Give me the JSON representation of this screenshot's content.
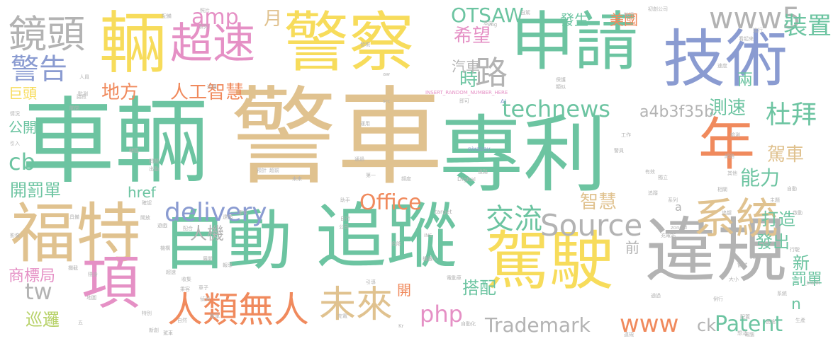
{
  "colors": {
    "green": "#6cc4a1",
    "tan": "#e0c28f",
    "yellow": "#f7dc5b",
    "blue": "#8a9bd1",
    "pink": "#e590c5",
    "orange": "#f08a5d",
    "gray": "#b3b3b3",
    "olive": "#b8d26a"
  },
  "words": [
    {
      "text": "車輛",
      "color": "green"
    },
    {
      "text": "警車",
      "color": "tan"
    },
    {
      "text": "專利",
      "color": "green"
    },
    {
      "text": "警察",
      "color": "yellow"
    },
    {
      "text": "申請",
      "color": "green"
    },
    {
      "text": "技術",
      "color": "blue"
    },
    {
      "text": "輛",
      "color": "yellow"
    },
    {
      "text": "超速",
      "color": "pink"
    },
    {
      "text": "自動",
      "color": "green"
    },
    {
      "text": "追蹤",
      "color": "green"
    },
    {
      "text": "駕駛",
      "color": "yellow"
    },
    {
      "text": "違規",
      "color": "gray"
    },
    {
      "text": "福特",
      "color": "tan"
    },
    {
      "text": "項",
      "color": "pink"
    },
    {
      "text": "年",
      "color": "orange"
    },
    {
      "text": "鏡頭",
      "color": "gray"
    },
    {
      "text": "警告",
      "color": "blue"
    },
    {
      "text": "系統",
      "color": "tan"
    },
    {
      "text": "未來",
      "color": "tan"
    },
    {
      "text": "人類無人",
      "color": "orange"
    },
    {
      "text": "Source",
      "color": "gray"
    },
    {
      "text": "www5",
      "color": "gray"
    },
    {
      "text": "杜拜",
      "color": "green"
    },
    {
      "text": "交流",
      "color": "green"
    },
    {
      "text": "delivery",
      "color": "blue"
    },
    {
      "text": "Office",
      "color": "orange"
    },
    {
      "text": "technews",
      "color": "green"
    },
    {
      "text": "Trademark",
      "color": "gray"
    },
    {
      "text": "Patent",
      "color": "green"
    },
    {
      "text": "www",
      "color": "orange"
    },
    {
      "text": "php",
      "color": "pink"
    },
    {
      "text": "amp",
      "color": "pink"
    },
    {
      "text": "OTSAW",
      "color": "green"
    },
    {
      "text": "希望",
      "color": "pink"
    },
    {
      "text": "路",
      "color": "gray"
    },
    {
      "text": "時",
      "color": "green"
    },
    {
      "text": "裝置",
      "color": "green"
    },
    {
      "text": "人工智慧",
      "color": "orange"
    },
    {
      "text": "地方",
      "color": "orange"
    },
    {
      "text": "月",
      "color": "tan"
    },
    {
      "text": "測速",
      "color": "green"
    },
    {
      "text": "a4b3f35b",
      "color": "gray"
    },
    {
      "text": "駕車",
      "color": "tan"
    },
    {
      "text": "能力",
      "color": "green"
    },
    {
      "text": "智慧",
      "color": "tan"
    },
    {
      "text": "人機",
      "color": "gray"
    },
    {
      "text": "打造",
      "color": "green"
    },
    {
      "text": "發出",
      "color": "green"
    },
    {
      "text": "搭配",
      "color": "green"
    },
    {
      "text": "開罰單",
      "color": "green"
    },
    {
      "text": "巡邏",
      "color": "olive"
    },
    {
      "text": "商標局",
      "color": "pink"
    },
    {
      "text": "cb",
      "color": "green"
    },
    {
      "text": "tw",
      "color": "gray"
    },
    {
      "text": "href",
      "color": "green"
    },
    {
      "text": "美國",
      "color": "orange"
    },
    {
      "text": "發生",
      "color": "green"
    },
    {
      "text": "汽車",
      "color": "gray"
    },
    {
      "text": "巨頭",
      "color": "yellow"
    },
    {
      "text": "公開",
      "color": "green"
    },
    {
      "text": "新",
      "color": "green"
    },
    {
      "text": "罰單",
      "color": "green"
    },
    {
      "text": "ck",
      "color": "gray"
    },
    {
      "text": "n",
      "color": "green"
    },
    {
      "text": "前",
      "color": "gray"
    },
    {
      "text": "開",
      "color": "orange"
    },
    {
      "text": "兩",
      "color": "green"
    },
    {
      "text": "a",
      "color": "gray"
    },
    {
      "text": "INSERT_RANDOM_NUMBER_HERE",
      "color": "pink"
    },
    {
      "text": "pixabay",
      "color": "blue"
    },
    {
      "text": "Digital",
      "color": "gray"
    },
    {
      "text": "target",
      "color": "gray"
    },
    {
      "text": "_blank",
      "color": "gray"
    },
    {
      "text": "zoneid",
      "color": "gray"
    },
    {
      "text": "img",
      "color": "gray"
    },
    {
      "text": "src",
      "color": "gray"
    },
    {
      "text": "aw",
      "color": "gray"
    },
    {
      "text": "AI",
      "color": "blue"
    },
    {
      "text": "Kr",
      "color": "gray"
    },
    {
      "text": "iNS",
      "color": "gray"
    },
    {
      "text": "執行",
      "color": "gray"
    },
    {
      "text": "初創公司",
      "color": "gray"
    },
    {
      "text": "配備",
      "color": "gray"
    },
    {
      "text": "系列",
      "color": "gray"
    },
    {
      "text": "電動車",
      "color": "gray"
    },
    {
      "text": "自動化",
      "color": "gray"
    },
    {
      "text": "機器人",
      "color": "gray"
    },
    {
      "text": "保護",
      "color": "gray"
    },
    {
      "text": "監測",
      "color": "gray"
    },
    {
      "text": "生產",
      "color": "gray"
    },
    {
      "text": "特別",
      "color": "gray"
    },
    {
      "text": "工作",
      "color": "gray"
    },
    {
      "text": "問題",
      "color": "gray"
    },
    {
      "text": "危險",
      "color": "gray"
    },
    {
      "text": "類似",
      "color": "gray"
    },
    {
      "text": "配置",
      "color": "gray"
    },
    {
      "text": "自行",
      "color": "gray"
    },
    {
      "text": "即可",
      "color": "gray"
    },
    {
      "text": "大小",
      "color": "gray"
    },
    {
      "text": "通過",
      "color": "gray"
    },
    {
      "text": "偵測",
      "color": "gray"
    },
    {
      "text": "網路",
      "color": "gray"
    },
    {
      "text": "看起來",
      "color": "gray"
    },
    {
      "text": "第一",
      "color": "gray"
    },
    {
      "text": "頻度",
      "color": "gray"
    },
    {
      "text": "本文",
      "color": "gray"
    },
    {
      "text": "自駕",
      "color": "gray"
    },
    {
      "text": "相關",
      "color": "gray"
    },
    {
      "text": "運用",
      "color": "gray"
    },
    {
      "text": "機構",
      "color": "gray"
    },
    {
      "text": "展開",
      "color": "gray"
    },
    {
      "text": "未來",
      "color": "gray"
    },
    {
      "text": "有效",
      "color": "gray"
    },
    {
      "text": "報導",
      "color": "gray"
    },
    {
      "text": "發現",
      "color": "gray"
    },
    {
      "text": "違規",
      "color": "gray"
    },
    {
      "text": "路段",
      "color": "gray"
    },
    {
      "text": "地圖",
      "color": "gray"
    },
    {
      "text": "充電",
      "color": "gray"
    },
    {
      "text": "道路",
      "color": "gray"
    },
    {
      "text": "助手",
      "color": "gray"
    },
    {
      "text": "行駛",
      "color": "gray"
    },
    {
      "text": "公司",
      "color": "gray"
    },
    {
      "text": "引導",
      "color": "gray"
    },
    {
      "text": "預計",
      "color": "gray"
    },
    {
      "text": "獨立",
      "color": "gray"
    },
    {
      "text": "車子",
      "color": "gray"
    },
    {
      "text": "警員",
      "color": "gray"
    },
    {
      "text": "主題",
      "color": "gray"
    },
    {
      "text": "系統",
      "color": "gray"
    },
    {
      "text": "通過",
      "color": "gray"
    },
    {
      "text": "逮捕",
      "color": "gray"
    },
    {
      "text": "出動",
      "color": "gray"
    },
    {
      "text": "開放",
      "color": "gray"
    },
    {
      "text": "遊戲",
      "color": "gray"
    },
    {
      "text": "配合",
      "color": "gray"
    },
    {
      "text": "轄區",
      "color": "gray"
    },
    {
      "text": "警車",
      "color": "gray"
    },
    {
      "text": "駕車",
      "color": "gray"
    },
    {
      "text": "事件",
      "color": "gray"
    },
    {
      "text": "巡邏",
      "color": "gray"
    },
    {
      "text": "照片",
      "color": "gray"
    },
    {
      "text": "系列",
      "color": "gray"
    },
    {
      "text": "引入",
      "color": "gray"
    },
    {
      "text": "情況",
      "color": "gray"
    },
    {
      "text": "超前",
      "color": "gray"
    },
    {
      "text": "例行",
      "color": "gray"
    },
    {
      "text": "新創",
      "color": "gray"
    },
    {
      "text": "五",
      "color": "gray"
    },
    {
      "text": "電腦",
      "color": "gray"
    },
    {
      "text": "追蹤",
      "color": "gray"
    },
    {
      "text": "速度",
      "color": "gray"
    },
    {
      "text": "想法",
      "color": "gray"
    },
    {
      "text": "逃逸",
      "color": "gray"
    },
    {
      "text": "攔截",
      "color": "gray"
    },
    {
      "text": "確認",
      "color": "gray"
    },
    {
      "text": "交通",
      "color": "gray"
    },
    {
      "text": "隱身",
      "color": "gray"
    },
    {
      "text": "嘗試",
      "color": "gray"
    },
    {
      "text": "啟動",
      "color": "gray"
    },
    {
      "text": "追趕",
      "color": "gray"
    },
    {
      "text": "檢測",
      "color": "gray"
    },
    {
      "text": "充電站",
      "color": "gray"
    },
    {
      "text": "其他",
      "color": "gray"
    },
    {
      "text": "自動",
      "color": "gray"
    },
    {
      "text": "進行",
      "color": "gray"
    },
    {
      "text": "關閉",
      "color": "gray"
    },
    {
      "text": "具備",
      "color": "gray"
    },
    {
      "text": "人員",
      "color": "gray"
    },
    {
      "text": "影像",
      "color": "gray"
    },
    {
      "text": "乘客",
      "color": "gray"
    },
    {
      "text": "收集",
      "color": "gray"
    },
    {
      "text": "超速",
      "color": "gray"
    },
    {
      "text": "自然",
      "color": "gray"
    },
    {
      "text": "減少",
      "color": "gray"
    },
    {
      "text": "玩具",
      "color": "gray"
    },
    {
      "text": "危險",
      "color": "gray"
    },
    {
      "text": "主動",
      "color": "gray"
    },
    {
      "text": "警報",
      "color": "gray"
    }
  ]
}
